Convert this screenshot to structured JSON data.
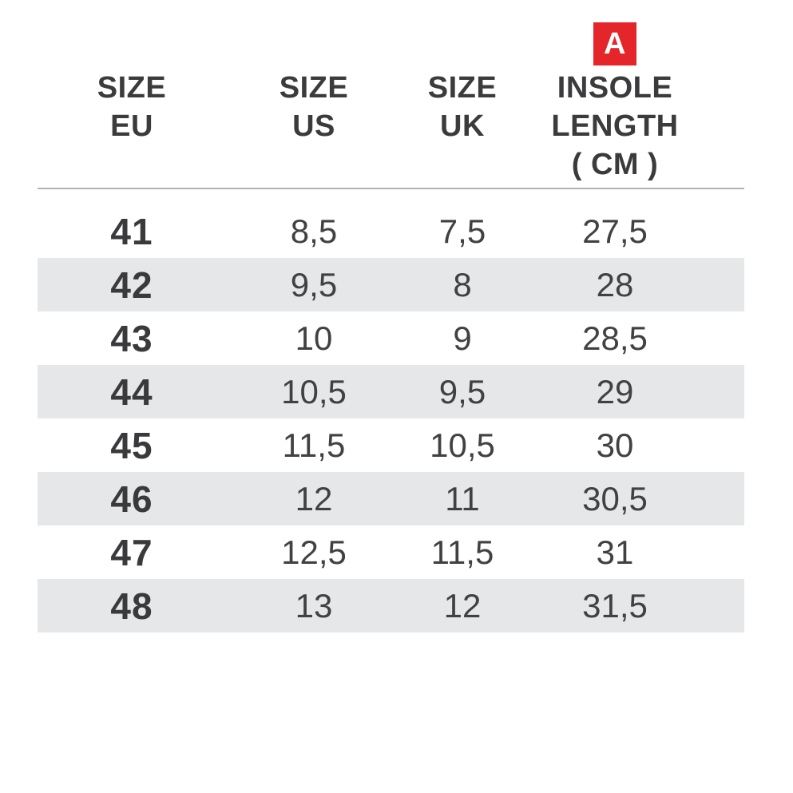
{
  "colors": {
    "text_dark": "#3a3a3c",
    "text_data": "#414144",
    "row_shade": "#e6e7e8",
    "header_divider": "#b2b2b2",
    "badge_background": "#e42529",
    "badge_text": "#ffffff",
    "page_background": "#ffffff"
  },
  "badge": {
    "label": "A"
  },
  "table": {
    "col_eu": {
      "l1": "SIZE",
      "l2": "EU"
    },
    "col_us": {
      "l1": "SIZE",
      "l2": "US"
    },
    "col_uk": {
      "l1": "SIZE",
      "l2": "UK"
    },
    "col_insole": {
      "l1": "INSOLE",
      "l2": "LENGTH",
      "l3": "( CM )"
    },
    "rows": [
      {
        "eu": "41",
        "us": "8,5",
        "uk": "7,5",
        "insole": "27,5"
      },
      {
        "eu": "42",
        "us": "9,5",
        "uk": "8",
        "insole": "28"
      },
      {
        "eu": "43",
        "us": "10",
        "uk": "9",
        "insole": "28,5"
      },
      {
        "eu": "44",
        "us": "10,5",
        "uk": "9,5",
        "insole": "29"
      },
      {
        "eu": "45",
        "us": "11,5",
        "uk": "10,5",
        "insole": "30"
      },
      {
        "eu": "46",
        "us": "12",
        "uk": "11",
        "insole": "30,5"
      },
      {
        "eu": "47",
        "us": "12,5",
        "uk": "11,5",
        "insole": "31"
      },
      {
        "eu": "48",
        "us": "13",
        "uk": "12",
        "insole": "31,5"
      }
    ]
  },
  "chart_data": {
    "type": "table",
    "title": "Shoe size conversion chart with insole length (dimension A)",
    "columns": [
      "SIZE EU",
      "SIZE US",
      "SIZE UK",
      "INSOLE LENGTH ( CM )"
    ],
    "rows": [
      [
        "41",
        "8,5",
        "7,5",
        "27,5"
      ],
      [
        "42",
        "9,5",
        "8",
        "28"
      ],
      [
        "43",
        "10",
        "9",
        "28,5"
      ],
      [
        "44",
        "10,5",
        "9,5",
        "29"
      ],
      [
        "45",
        "11,5",
        "10,5",
        "30"
      ],
      [
        "46",
        "12",
        "11",
        "30,5"
      ],
      [
        "47",
        "12,5",
        "11,5",
        "31"
      ],
      [
        "48",
        "13",
        "12",
        "31,5"
      ]
    ],
    "layout": {
      "shaded_rows": [
        "42",
        "44",
        "46",
        "48"
      ],
      "badge_above_column": "INSOLE LENGTH ( CM )",
      "badge_label": "A"
    }
  }
}
